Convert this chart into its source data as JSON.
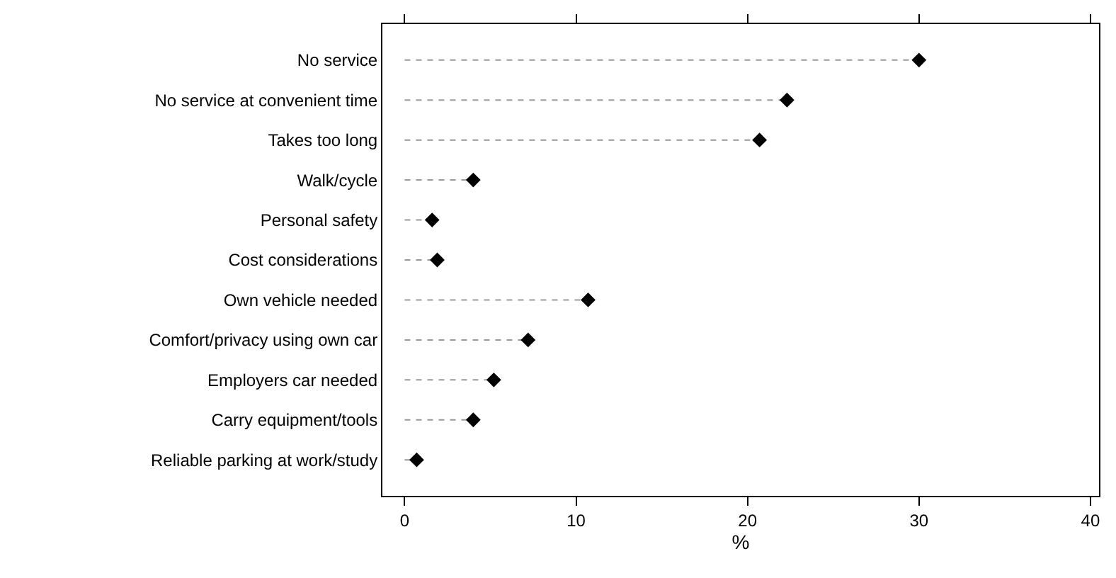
{
  "chart_data": {
    "type": "lollipop",
    "xlabel": "%",
    "categories": [
      "No service",
      "No service at convenient time",
      "Takes too long",
      "Walk/cycle",
      "Personal safety",
      "Cost considerations",
      "Own vehicle needed",
      "Comfort/privacy using own car",
      "Employers car needed",
      "Carry equipment/tools",
      "Reliable parking at work/study"
    ],
    "orientation": "horizontal",
    "series": [
      {
        "color": "#000000",
        "values": [
          30.0,
          22.3,
          20.7,
          4.0,
          1.6,
          1.9,
          10.7,
          7.2,
          5.2,
          4.0,
          0.7
        ]
      }
    ],
    "xlim": [
      -1.3,
      40.5
    ],
    "xticks": [
      0,
      10,
      20,
      30,
      40
    ],
    "grid": false,
    "marker": "diamond",
    "line_style": "dashed"
  }
}
